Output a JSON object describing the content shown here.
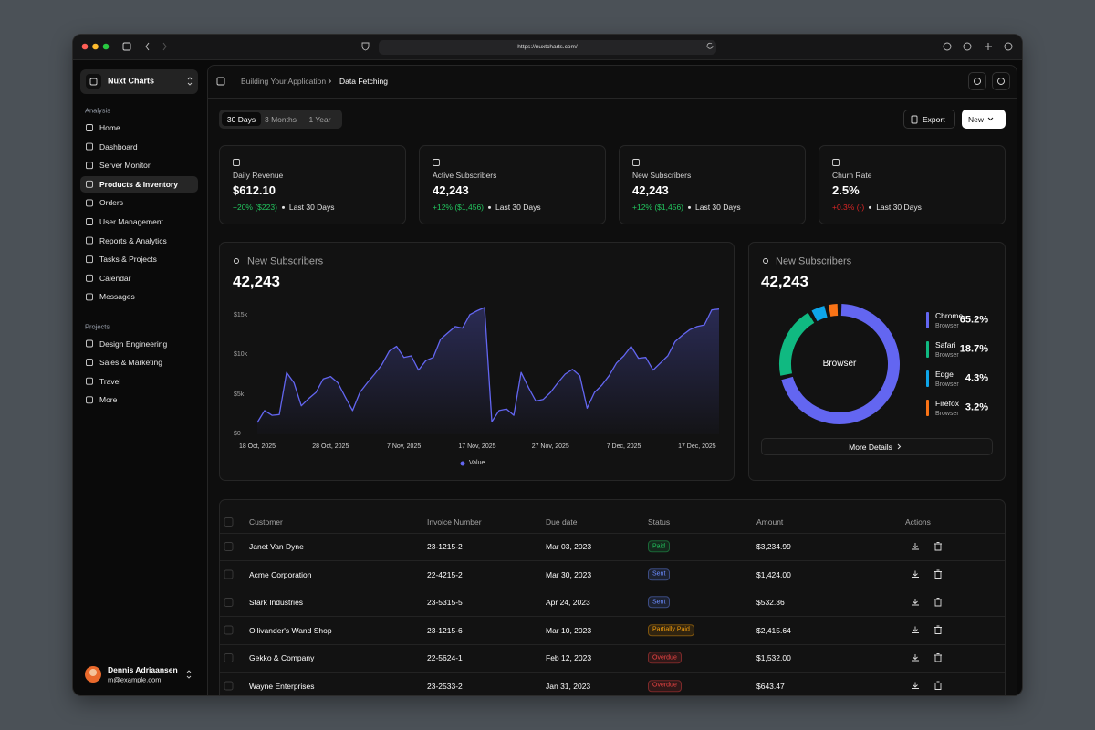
{
  "browser": {
    "url": "https://nuxtcharts.com/"
  },
  "sidebar": {
    "brand": "Nuxt Charts",
    "sections": [
      {
        "title": "Analysis",
        "items": [
          "Home",
          "Dashboard",
          "Server Monitor",
          "Products & Inventory",
          "Orders",
          "User Management",
          "Reports & Analytics",
          "Tasks & Projects",
          "Calendar",
          "Messages"
        ],
        "active": 3
      },
      {
        "title": "Projects",
        "items": [
          "Design Engineering",
          "Sales & Marketing",
          "Travel",
          "More"
        ]
      }
    ],
    "user": {
      "name": "Dennis Adriaansen",
      "email": "m@example.com"
    }
  },
  "header": {
    "breadcrumb": [
      "Building Your Application",
      "Data Fetching"
    ]
  },
  "toolbar": {
    "ranges": [
      "30 Days",
      "3 Months",
      "1 Year"
    ],
    "active_range": 0,
    "export": "Export",
    "new": "New"
  },
  "stats": [
    {
      "label": "Daily Revenue",
      "value": "$612.10",
      "change": "+20% ($223)",
      "change_color": "#22c55e",
      "period": "Last 30 Days"
    },
    {
      "label": "Active Subscribers",
      "value": "42,243",
      "change": "+12% ($1,456)",
      "change_color": "#22c55e",
      "period": "Last 30 Days"
    },
    {
      "label": "New Subscribers",
      "value": "42,243",
      "change": "+12% ($1,456)",
      "change_color": "#22c55e",
      "period": "Last 30 Days"
    },
    {
      "label": "Churn Rate",
      "value": "2.5%",
      "change": "+0.3% (-)",
      "change_color": "#dc2626",
      "period": "Last 30 Days"
    }
  ],
  "chart_data": [
    {
      "type": "line",
      "title": "New Subscribers",
      "total": "42,243",
      "categories": [
        "18 Oct, 2025",
        null,
        null,
        null,
        null,
        null,
        null,
        null,
        null,
        null,
        "28 Oct, 2025",
        null,
        null,
        null,
        null,
        null,
        null,
        null,
        null,
        null,
        "7 Nov, 2025",
        null,
        null,
        null,
        null,
        null,
        null,
        null,
        null,
        null,
        "17 Nov, 2025",
        null,
        null,
        null,
        null,
        null,
        null,
        null,
        null,
        null,
        "27 Nov, 2025",
        null,
        null,
        null,
        null,
        null,
        null,
        null,
        null,
        null,
        "7 Dec, 2025",
        null,
        null,
        null,
        null,
        null,
        null,
        null,
        null,
        null,
        "17 Dec, 2025",
        null,
        null,
        null
      ],
      "series": [
        {
          "name": "Value",
          "color": "#6366f1",
          "values": [
            1500,
            3000,
            2400,
            2500,
            7800,
            6500,
            3600,
            4500,
            5300,
            7000,
            7300,
            6500,
            4700,
            3000,
            5300,
            6500,
            7600,
            8800,
            10500,
            11100,
            9700,
            9900,
            8100,
            9300,
            9700,
            12000,
            12800,
            13600,
            13400,
            15100,
            15600,
            16000,
            1600,
            3000,
            3200,
            2400,
            7800,
            5900,
            4200,
            4400,
            5300,
            6500,
            7600,
            8200,
            7400,
            3300,
            5300,
            6200,
            7400,
            9000,
            9900,
            11100,
            9600,
            9700,
            8100,
            9000,
            9900,
            11700,
            12500,
            13200,
            13600,
            13800,
            15700,
            15800
          ]
        }
      ],
      "ylim": [
        0,
        16000
      ],
      "yticks": [
        {
          "value": 0,
          "label": "$0"
        },
        {
          "value": 5000,
          "label": "$5k"
        },
        {
          "value": 10000,
          "label": "$10k"
        },
        {
          "value": 15000,
          "label": "$15k"
        }
      ],
      "grid": false
    },
    {
      "type": "pie",
      "title": "New Subscribers",
      "total": "42,243",
      "center_label": "Browser",
      "categories": [
        "Chrome",
        "Safari",
        "Edge",
        "Firefox"
      ],
      "sublabels": [
        "Browser",
        "Browser",
        "Browser",
        "Browser"
      ],
      "values": [
        65.2,
        18.7,
        4.3,
        3.2
      ],
      "value_labels": [
        "65.2%",
        "18.7%",
        "4.3%",
        "3.2%"
      ],
      "colors": [
        "#6366f1",
        "#10b981",
        "#0ea5e9",
        "#f97316"
      ],
      "button": "More Details"
    }
  ],
  "table": {
    "columns": [
      "Customer",
      "Invoice Number",
      "Due date",
      "Status",
      "Amount",
      "Actions"
    ],
    "rows": [
      {
        "customer": "Janet Van Dyne",
        "invoice": "23-1215-2",
        "due": "Mar 03, 2023",
        "status": "Paid",
        "status_color": "#22c55e",
        "amount": "$3,234.99"
      },
      {
        "customer": "Acme Corporation",
        "invoice": "22-4215-2",
        "due": "Mar 30, 2023",
        "status": "Sent",
        "status_color": "#6b8cff",
        "amount": "$1,424.00"
      },
      {
        "customer": "Stark Industries",
        "invoice": "23-5315-5",
        "due": "Apr 24, 2023",
        "status": "Sent",
        "status_color": "#6b8cff",
        "amount": "$532.36"
      },
      {
        "customer": "Ollivander's Wand Shop",
        "invoice": "23-1215-6",
        "due": "Mar 10, 2023",
        "status": "Partially Paid",
        "status_color": "#f59e0b",
        "amount": "$2,415.64"
      },
      {
        "customer": "Gekko & Company",
        "invoice": "22-5624-1",
        "due": "Feb 12, 2023",
        "status": "Overdue",
        "status_color": "#ef4444",
        "amount": "$1,532.00"
      },
      {
        "customer": "Wayne Enterprises",
        "invoice": "23-2533-2",
        "due": "Jan 31, 2023",
        "status": "Overdue",
        "status_color": "#ef4444",
        "amount": "$643.47"
      }
    ]
  }
}
